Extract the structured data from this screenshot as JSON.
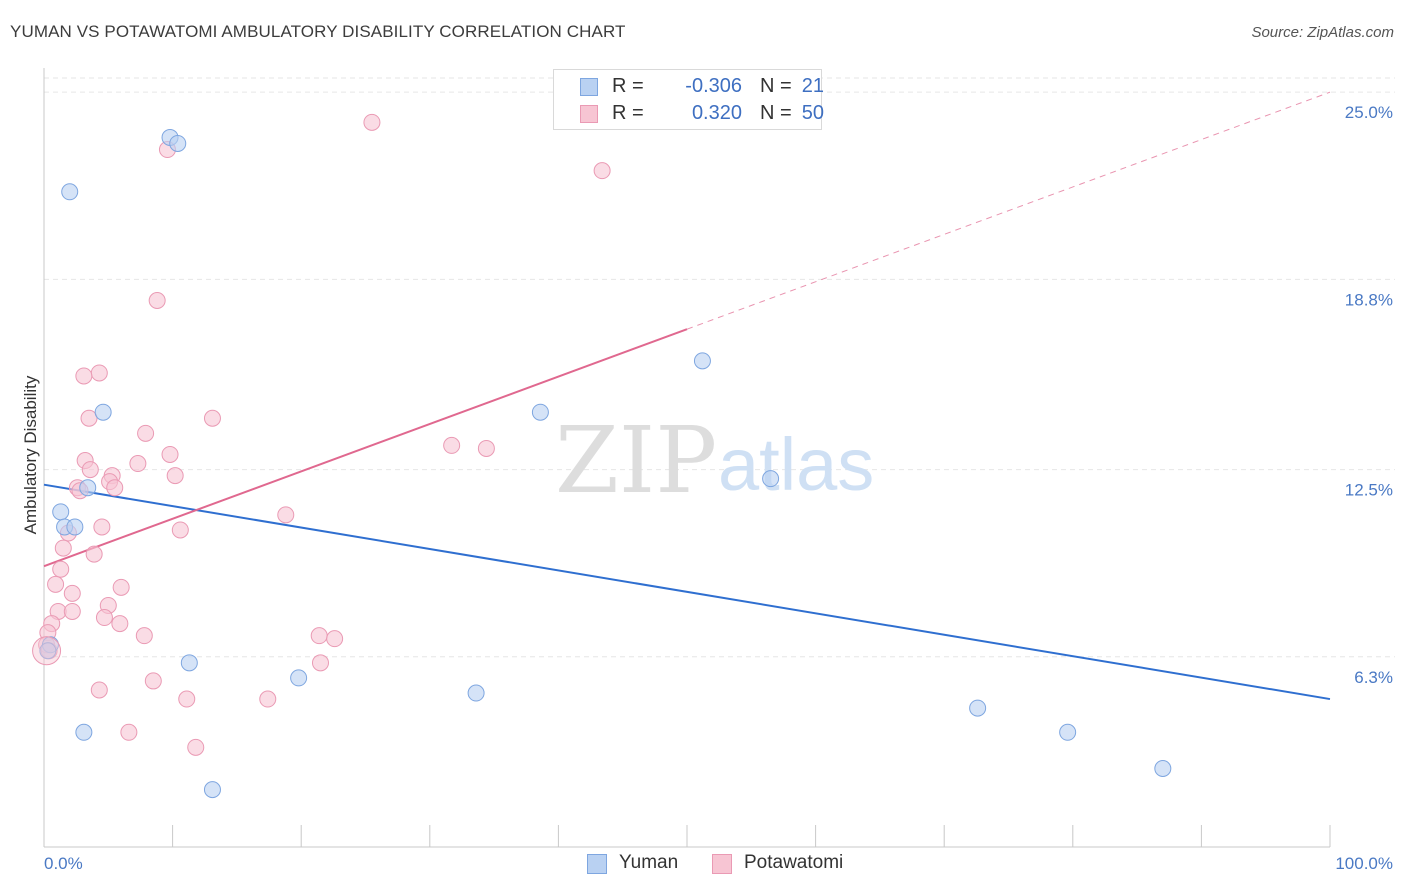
{
  "title": "YUMAN VS POTAWATOMI AMBULATORY DISABILITY CORRELATION CHART",
  "source": "Source: ZipAtlas.com",
  "watermark": {
    "zip": "ZIP",
    "atlas": "atlas"
  },
  "colors": {
    "yuman_fill": "#b9d1f2",
    "yuman_stroke": "#7ea6e0",
    "yuman_line": "#2f6fd0",
    "potawatomi_fill": "#f7c5d3",
    "potawatomi_stroke": "#ea9ab4",
    "potawatomi_line": "#e0688f",
    "tick_label": "#4a79c4",
    "grid": "#e6e6e6"
  },
  "legend": {
    "rows": [
      {
        "series": "Yuman",
        "r_label": "R =",
        "r_value": "-0.306",
        "n_label": "N =",
        "n_value": "21"
      },
      {
        "series": "Potawatomi",
        "r_label": "R =",
        "r_value": "0.320",
        "n_label": "N =",
        "n_value": "50"
      }
    ]
  },
  "bottom_legend": [
    {
      "label": "Yuman"
    },
    {
      "label": "Potawatomi"
    }
  ],
  "chart_data": {
    "type": "scatter",
    "title": "YUMAN VS POTAWATOMI AMBULATORY DISABILITY CORRELATION CHART",
    "xlabel": "",
    "ylabel": "Ambulatory Disability",
    "xlim": [
      0,
      100
    ],
    "ylim": [
      0,
      25.8
    ],
    "x_tick_labels": [
      "0.0%",
      "100.0%"
    ],
    "y_ticks": [
      {
        "value": 6.3,
        "label": "6.3%"
      },
      {
        "value": 12.5,
        "label": "12.5%"
      },
      {
        "value": 18.8,
        "label": "18.8%"
      },
      {
        "value": 25.0,
        "label": "25.0%"
      }
    ],
    "series": [
      {
        "name": "Yuman",
        "color": "#b9d1f2",
        "points": [
          [
            0.5,
            6.7
          ],
          [
            1.3,
            11.1
          ],
          [
            1.6,
            10.6
          ],
          [
            2.0,
            21.7
          ],
          [
            2.4,
            10.6
          ],
          [
            3.1,
            3.8
          ],
          [
            3.4,
            11.9
          ],
          [
            4.6,
            14.4
          ],
          [
            9.8,
            23.5
          ],
          [
            10.4,
            23.3
          ],
          [
            11.3,
            6.1
          ],
          [
            13.1,
            1.9
          ],
          [
            19.8,
            5.6
          ],
          [
            33.6,
            5.1
          ],
          [
            38.6,
            14.4
          ],
          [
            51.2,
            16.1
          ],
          [
            56.5,
            12.2
          ],
          [
            72.6,
            4.6
          ],
          [
            79.6,
            3.8
          ],
          [
            87.0,
            2.6
          ],
          [
            0.3,
            6.5
          ]
        ],
        "trend": {
          "x0": 0,
          "y0": 12.0,
          "x1": 100,
          "y1": 4.9
        }
      },
      {
        "name": "Potawatomi",
        "color": "#f7c5d3",
        "points": [
          [
            25.5,
            24.0
          ],
          [
            9.6,
            23.1
          ],
          [
            43.4,
            22.4
          ],
          [
            8.8,
            18.1
          ],
          [
            4.3,
            15.7
          ],
          [
            3.1,
            15.6
          ],
          [
            3.5,
            14.2
          ],
          [
            13.1,
            14.2
          ],
          [
            7.9,
            13.7
          ],
          [
            31.7,
            13.3
          ],
          [
            34.4,
            13.2
          ],
          [
            9.8,
            13.0
          ],
          [
            3.2,
            12.8
          ],
          [
            7.3,
            12.7
          ],
          [
            3.6,
            12.5
          ],
          [
            10.2,
            12.3
          ],
          [
            5.3,
            12.3
          ],
          [
            5.1,
            12.1
          ],
          [
            2.6,
            11.9
          ],
          [
            5.5,
            11.9
          ],
          [
            2.8,
            11.8
          ],
          [
            18.8,
            11.0
          ],
          [
            4.5,
            10.6
          ],
          [
            10.6,
            10.5
          ],
          [
            1.9,
            10.4
          ],
          [
            1.5,
            9.9
          ],
          [
            3.9,
            9.7
          ],
          [
            1.3,
            9.2
          ],
          [
            0.9,
            8.7
          ],
          [
            6.0,
            8.6
          ],
          [
            2.2,
            8.4
          ],
          [
            5.0,
            8.0
          ],
          [
            1.1,
            7.8
          ],
          [
            2.2,
            7.8
          ],
          [
            4.7,
            7.6
          ],
          [
            5.9,
            7.4
          ],
          [
            0.6,
            7.4
          ],
          [
            0.3,
            7.1
          ],
          [
            7.8,
            7.0
          ],
          [
            21.4,
            7.0
          ],
          [
            22.6,
            6.9
          ],
          [
            0.2,
            6.7
          ],
          [
            0.4,
            6.5
          ],
          [
            21.5,
            6.1
          ],
          [
            8.5,
            5.5
          ],
          [
            4.3,
            5.2
          ],
          [
            11.1,
            4.9
          ],
          [
            17.4,
            4.9
          ],
          [
            6.6,
            3.8
          ],
          [
            11.8,
            3.3
          ]
        ],
        "trend": {
          "x0": 0,
          "y0": 9.3,
          "x1": 100,
          "y1": 25.0,
          "solid_until_x": 50
        }
      }
    ]
  }
}
